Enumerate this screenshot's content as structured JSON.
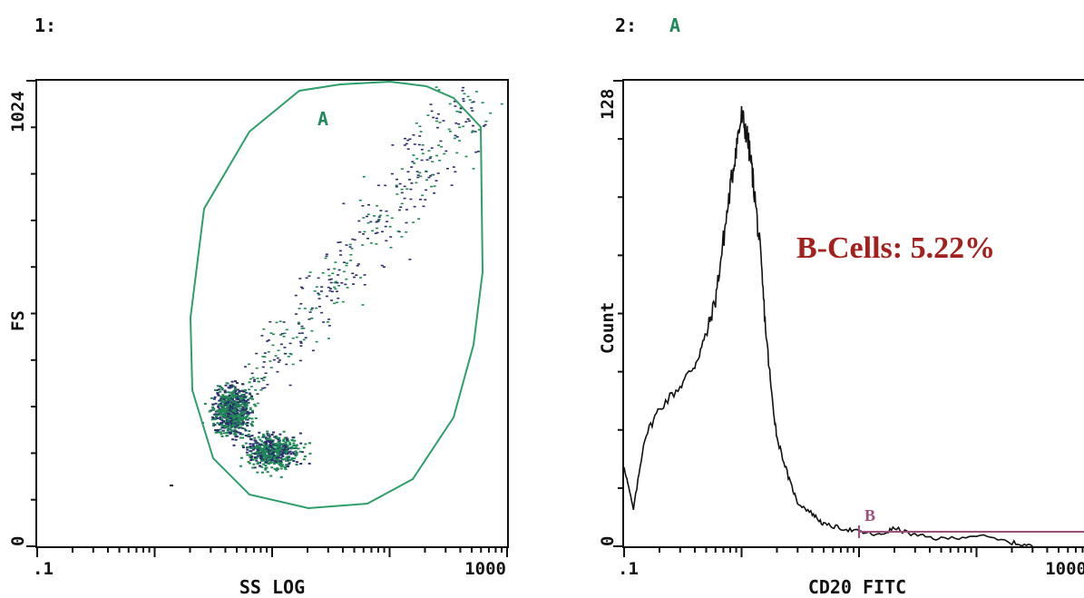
{
  "colors": {
    "gate": "#2e9e6a",
    "dots_dense": "#1f8a55",
    "dots_sparse": "#2b2f6e",
    "histogram": "#111111",
    "marker_b": "#9c4f7e",
    "annotation": "#a3201c"
  },
  "chart_data": [
    {
      "type": "scatter",
      "panel_label": "1:",
      "xlabel": "SS LOG",
      "ylabel": "FS",
      "x_scale": "log",
      "xlim": [
        0.1,
        1000
      ],
      "ylim": [
        0,
        1024
      ],
      "x_tick_labels": [
        ".1",
        "1000"
      ],
      "y_tick_labels": [
        "0",
        "1024"
      ],
      "gate": {
        "name": "A"
      },
      "populations": [
        {
          "center": {
            "x": 4.5,
            "y": 300
          },
          "spread": "dense"
        },
        {
          "center": {
            "x": 10,
            "y": 210
          },
          "spread": "dense"
        },
        {
          "center": {
            "x": 60,
            "y": 560
          },
          "spread": "sparse"
        }
      ]
    },
    {
      "type": "line",
      "panel_label": "2:",
      "panel_gate": "A",
      "xlabel": "CD20 FITC",
      "ylabel": "Count",
      "x_scale": "log",
      "xlim": [
        0.1,
        1000
      ],
      "ylim": [
        0,
        128
      ],
      "x_tick_labels": [
        ".1",
        "1000"
      ],
      "y_tick_labels": [
        "0",
        "128"
      ],
      "series": [
        {
          "x": [
            0.1,
            0.12,
            0.15,
            0.2,
            0.3,
            0.4,
            0.5,
            0.6,
            0.7,
            0.8,
            0.9,
            1.0,
            1.1,
            1.2,
            1.3,
            1.45,
            1.6,
            1.8,
            2.0,
            2.5,
            3,
            4,
            5,
            7,
            10,
            15,
            20,
            30,
            50,
            100,
            200,
            300
          ],
          "y": [
            22,
            10,
            30,
            38,
            44,
            50,
            58,
            68,
            84,
            98,
            110,
            118,
            114,
            106,
            96,
            80,
            60,
            42,
            30,
            19,
            12,
            9,
            6,
            5,
            4,
            3,
            5,
            3,
            2,
            3,
            1,
            0
          ]
        }
      ],
      "markers": [
        {
          "name": "B",
          "x_range": [
            10,
            1000
          ]
        }
      ],
      "annotation": "B-Cells: 5.22%"
    }
  ]
}
